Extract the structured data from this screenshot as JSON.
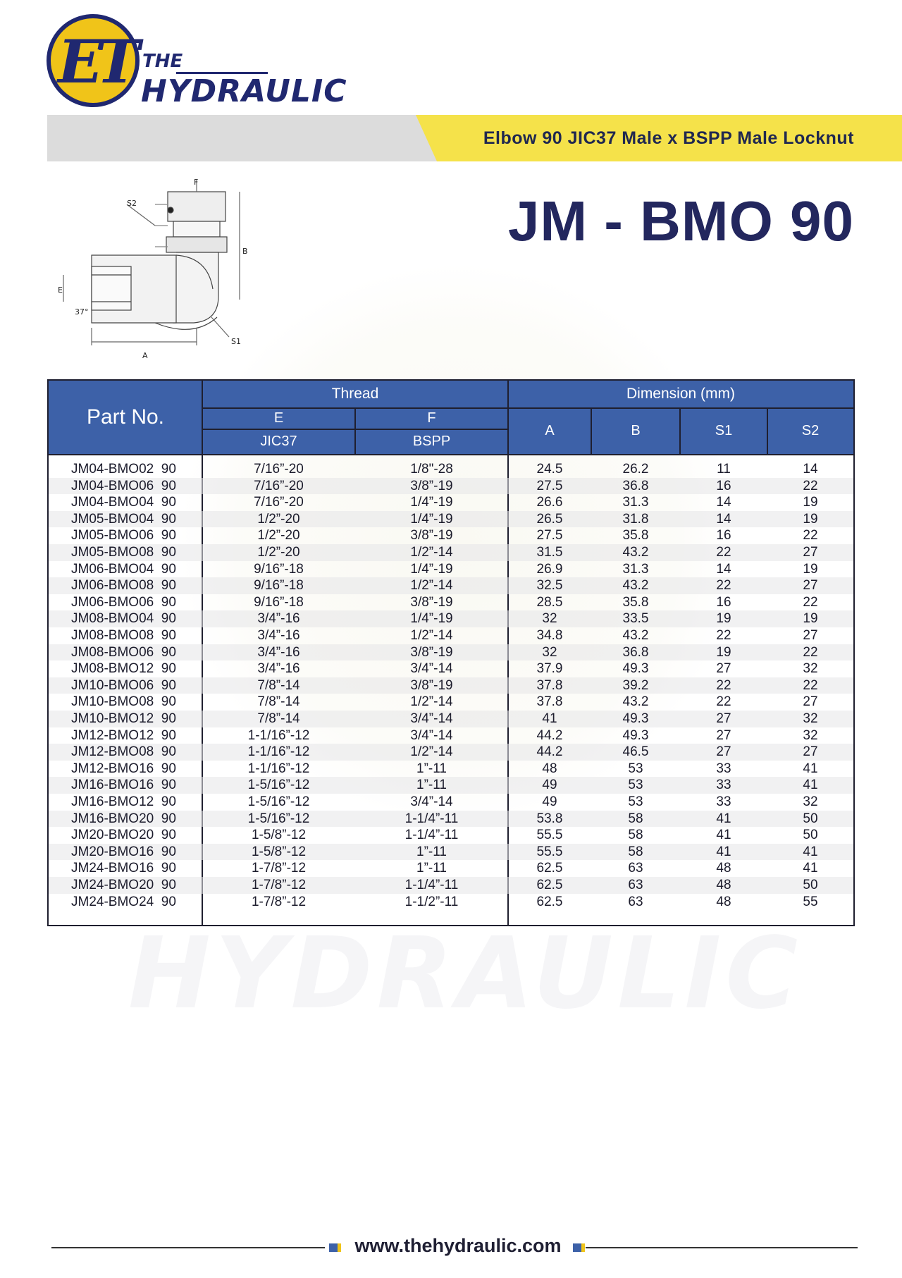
{
  "logo": {
    "letters": "ET",
    "the": "THE",
    "name": "HYDRAULIC"
  },
  "band_title": "Elbow 90 JIC37 Male x BSPP Male Locknut",
  "model_title": "JM - BMO 90",
  "drawing_labels": {
    "f": "F",
    "b": "B",
    "s2": "S2",
    "s1": "S1",
    "e": "E",
    "angle": "37°",
    "a": "A"
  },
  "table": {
    "header": {
      "part_no": "Part No.",
      "thread": "Thread",
      "e": "E",
      "jic37": "JIC37",
      "f": "F",
      "bspp": "BSPP",
      "dimension": "Dimension (mm)",
      "a": "A",
      "b": "B",
      "s1": "S1",
      "s2": "S2"
    },
    "rows": [
      [
        "JM04-BMO02  90",
        "7/16”-20",
        "1/8\"-28",
        "24.5",
        "26.2",
        "11",
        "14"
      ],
      [
        "JM04-BMO06  90",
        "7/16”-20",
        "3/8”-19",
        "27.5",
        "36.8",
        "16",
        "22"
      ],
      [
        "JM04-BMO04  90",
        "7/16”-20",
        "1/4”-19",
        "26.6",
        "31.3",
        "14",
        "19"
      ],
      [
        "JM05-BMO04  90",
        "1/2”-20",
        "1/4”-19",
        "26.5",
        "31.8",
        "14",
        "19"
      ],
      [
        "JM05-BMO06  90",
        "1/2”-20",
        "3/8”-19",
        "27.5",
        "35.8",
        "16",
        "22"
      ],
      [
        "JM05-BMO08  90",
        "1/2”-20",
        "1/2”-14",
        "31.5",
        "43.2",
        "22",
        "27"
      ],
      [
        "JM06-BMO04  90",
        "9/16”-18",
        "1/4”-19",
        "26.9",
        "31.3",
        "14",
        "19"
      ],
      [
        "JM06-BMO08  90",
        "9/16”-18",
        "1/2”-14",
        "32.5",
        "43.2",
        "22",
        "27"
      ],
      [
        "JM06-BMO06  90",
        "9/16”-18",
        "3/8”-19",
        "28.5",
        "35.8",
        "16",
        "22"
      ],
      [
        "JM08-BMO04  90",
        "3/4”-16",
        "1/4”-19",
        "32",
        "33.5",
        "19",
        "19"
      ],
      [
        "JM08-BMO08  90",
        "3/4”-16",
        "1/2”-14",
        "34.8",
        "43.2",
        "22",
        "27"
      ],
      [
        "JM08-BMO06  90",
        "3/4”-16",
        "3/8”-19",
        "32",
        "36.8",
        "19",
        "22"
      ],
      [
        "JM08-BMO12  90",
        "3/4”-16",
        "3/4”-14",
        "37.9",
        "49.3",
        "27",
        "32"
      ],
      [
        "JM10-BMO06  90",
        "7/8”-14",
        "3/8”-19",
        "37.8",
        "39.2",
        "22",
        "22"
      ],
      [
        "JM10-BMO08  90",
        "7/8”-14",
        "1/2”-14",
        "37.8",
        "43.2",
        "22",
        "27"
      ],
      [
        "JM10-BMO12  90",
        "7/8”-14",
        "3/4”-14",
        "41",
        "49.3",
        "27",
        "32"
      ],
      [
        "JM12-BMO12  90",
        "1-1/16”-12",
        "3/4”-14",
        "44.2",
        "49.3",
        "27",
        "32"
      ],
      [
        "JM12-BMO08  90",
        "1-1/16”-12",
        "1/2”-14",
        "44.2",
        "46.5",
        "27",
        "27"
      ],
      [
        "JM12-BMO16  90",
        "1-1/16”-12",
        "1”-11",
        "48",
        "53",
        "33",
        "41"
      ],
      [
        "JM16-BMO16  90",
        "1-5/16”-12",
        "1”-11",
        "49",
        "53",
        "33",
        "41"
      ],
      [
        "JM16-BMO12  90",
        "1-5/16”-12",
        "3/4”-14",
        "49",
        "53",
        "33",
        "32"
      ],
      [
        "JM16-BMO20  90",
        "1-5/16”-12",
        "1-1/4”-11",
        "53.8",
        "58",
        "41",
        "50"
      ],
      [
        "JM20-BMO20  90",
        "1-5/8”-12",
        "1-1/4”-11",
        "55.5",
        "58",
        "41",
        "50"
      ],
      [
        "JM20-BMO16  90",
        "1-5/8”-12",
        "1”-11",
        "55.5",
        "58",
        "41",
        "41"
      ],
      [
        "JM24-BMO16  90",
        "1-7/8”-12",
        "1”-11",
        "62.5",
        "63",
        "48",
        "41"
      ],
      [
        "JM24-BMO20  90",
        "1-7/8”-12",
        "1-1/4”-11",
        "62.5",
        "63",
        "48",
        "50"
      ],
      [
        "JM24-BMO24  90",
        "1-7/8”-12",
        "1-1/2”-11",
        "62.5",
        "63",
        "48",
        "55"
      ]
    ]
  },
  "watermark": "HYDRAULIC",
  "footer_url": "www.thehydraulic.com",
  "colors": {
    "navy": "#202870",
    "header_blue": "#3d61a8",
    "yellow": "#f5e24a",
    "gold": "#f0c419",
    "gray_band": "#dcdcdc"
  }
}
